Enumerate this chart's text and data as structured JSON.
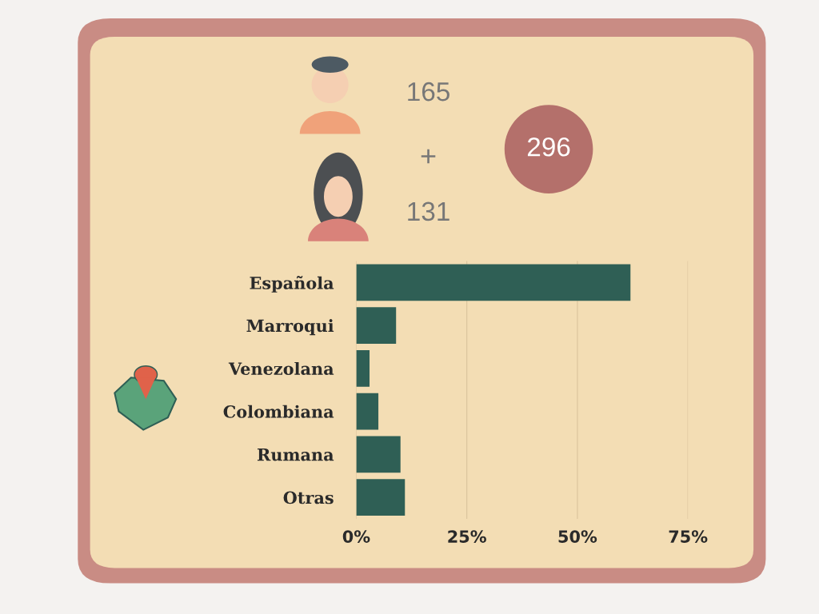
{
  "chart_data": {
    "type": "bar",
    "orientation": "horizontal",
    "categories": [
      "Española",
      "Marroqui",
      "Venezolana",
      "Colombiana",
      "Rumana",
      "Otras"
    ],
    "values": [
      62,
      9,
      3,
      5,
      10,
      11
    ],
    "color": "#2f5f55",
    "xlim": [
      0,
      75
    ],
    "xticks": [
      {
        "value": 0,
        "label": "0%"
      },
      {
        "value": 25,
        "label": "25%"
      },
      {
        "value": 50,
        "label": "50%"
      },
      {
        "value": 75,
        "label": "75%"
      }
    ],
    "grid": "x",
    "annotations": [
      "165",
      "+",
      "131",
      "296"
    ]
  }
}
